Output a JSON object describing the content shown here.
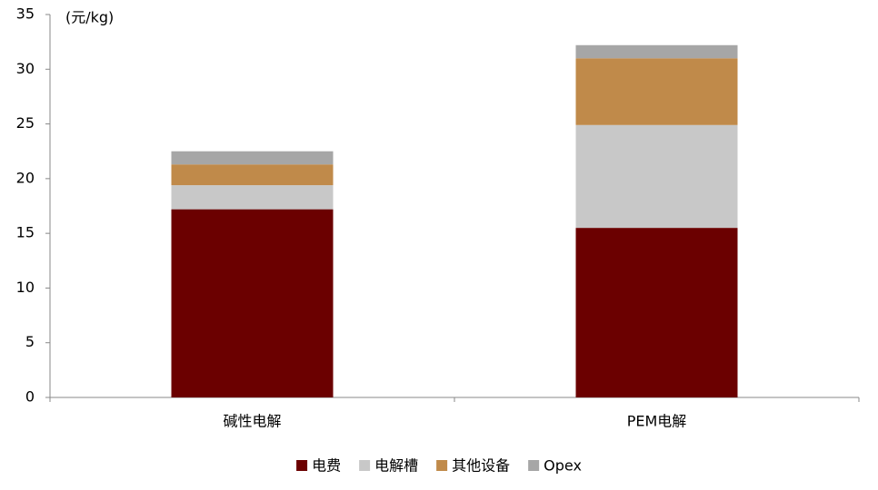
{
  "chart_data": {
    "type": "stacked_bar",
    "y_label": "(元/kg)",
    "categories": [
      "碱性电解",
      "PEM电解"
    ],
    "series": [
      {
        "name": "电费",
        "color": "#6b0000",
        "values": [
          17.2,
          15.5
        ]
      },
      {
        "name": "电解槽",
        "color": "#c8c8c8",
        "values": [
          2.2,
          9.4
        ]
      },
      {
        "name": "其他设备",
        "color": "#c08a4a",
        "values": [
          1.9,
          6.1
        ]
      },
      {
        "name": "Opex",
        "color": "#a6a6a6",
        "values": [
          1.2,
          1.2
        ]
      }
    ],
    "ylim": [
      0,
      35
    ],
    "yticks": [
      0,
      5,
      10,
      15,
      20,
      25,
      30,
      35
    ],
    "grid": false,
    "legend": "bottom"
  }
}
